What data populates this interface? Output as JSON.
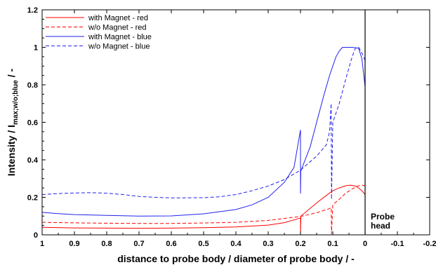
{
  "chart_data": {
    "type": "line",
    "xlabel": "distance to probe body / diameter of probe body / -",
    "ylabel": {
      "prefix": "Intensity / I",
      "subscript": "max;w/o;blue",
      "suffix": " / -"
    },
    "xlim": [
      1,
      -0.2
    ],
    "ylim": [
      0,
      1.2
    ],
    "x_ticks": [
      1,
      0.9,
      0.8,
      0.7,
      0.6,
      0.5,
      0.4,
      0.3,
      0.2,
      0.1,
      0,
      -0.1,
      -0.2
    ],
    "x_tick_labels": [
      "1",
      "0.9",
      "0.8",
      "0.7",
      "0.6",
      "0.5",
      "0.4",
      "0.3",
      "0.2",
      "0.1",
      "0",
      "-0.1",
      "-0.2"
    ],
    "y_ticks": [
      0,
      0.2,
      0.4,
      0.6,
      0.8,
      1,
      1.2
    ],
    "y_tick_labels": [
      "0",
      "0.2",
      "0.4",
      "0.6",
      "0.8",
      "1",
      "1.2"
    ],
    "grid": false,
    "legend_position": "top-left",
    "annotation": {
      "text_lines": [
        "Probe",
        "head"
      ],
      "x": 0,
      "vertical_line_at_x": 0
    },
    "series": [
      {
        "name": "with Magnet - red",
        "color": "#ff0000",
        "dash": "solid",
        "points": [
          [
            1.0,
            0.04
          ],
          [
            0.9,
            0.037
          ],
          [
            0.8,
            0.036
          ],
          [
            0.7,
            0.035
          ],
          [
            0.6,
            0.036
          ],
          [
            0.5,
            0.038
          ],
          [
            0.4,
            0.042
          ],
          [
            0.3,
            0.052
          ],
          [
            0.25,
            0.065
          ],
          [
            0.21,
            0.085
          ],
          [
            0.2,
            0.09
          ],
          [
            0.2,
            0.0
          ],
          [
            0.199,
            0.1
          ],
          [
            0.15,
            0.17
          ],
          [
            0.12,
            0.21
          ],
          [
            0.1,
            0.235
          ],
          [
            0.08,
            0.25
          ],
          [
            0.06,
            0.262
          ],
          [
            0.045,
            0.265
          ],
          [
            0.03,
            0.26
          ],
          [
            0.02,
            0.25
          ],
          [
            0.01,
            0.235
          ],
          [
            0.0,
            0.215
          ]
        ]
      },
      {
        "name": "w/o Magnet - red",
        "color": "#ff0000",
        "dash": "dashed",
        "points": [
          [
            1.0,
            0.067
          ],
          [
            0.9,
            0.064
          ],
          [
            0.8,
            0.062
          ],
          [
            0.7,
            0.061
          ],
          [
            0.6,
            0.061
          ],
          [
            0.5,
            0.063
          ],
          [
            0.4,
            0.067
          ],
          [
            0.3,
            0.077
          ],
          [
            0.2,
            0.098
          ],
          [
            0.15,
            0.118
          ],
          [
            0.11,
            0.14
          ],
          [
            0.105,
            0.145
          ],
          [
            0.104,
            0.005
          ],
          [
            0.1,
            0.16
          ],
          [
            0.08,
            0.19
          ],
          [
            0.06,
            0.222
          ],
          [
            0.04,
            0.245
          ],
          [
            0.02,
            0.262
          ],
          [
            0.01,
            0.265
          ],
          [
            0.0,
            0.262
          ]
        ]
      },
      {
        "name": "with Magnet - blue",
        "color": "#2222ee",
        "dash": "solid",
        "points": [
          [
            1.0,
            0.12
          ],
          [
            0.95,
            0.113
          ],
          [
            0.9,
            0.108
          ],
          [
            0.8,
            0.104
          ],
          [
            0.7,
            0.1
          ],
          [
            0.6,
            0.101
          ],
          [
            0.5,
            0.112
          ],
          [
            0.4,
            0.135
          ],
          [
            0.35,
            0.16
          ],
          [
            0.3,
            0.2
          ],
          [
            0.25,
            0.28
          ],
          [
            0.22,
            0.36
          ],
          [
            0.2,
            0.56
          ],
          [
            0.2,
            0.22
          ],
          [
            0.199,
            0.34
          ],
          [
            0.17,
            0.47
          ],
          [
            0.15,
            0.6
          ],
          [
            0.13,
            0.73
          ],
          [
            0.11,
            0.85
          ],
          [
            0.09,
            0.95
          ],
          [
            0.08,
            0.98
          ],
          [
            0.07,
            1.0
          ],
          [
            0.04,
            1.0
          ],
          [
            0.02,
            0.995
          ],
          [
            0.01,
            0.94
          ],
          [
            0.0,
            0.79
          ]
        ]
      },
      {
        "name": "w/o Magnet - blue",
        "color": "#2222ee",
        "dash": "dashed",
        "points": [
          [
            1.0,
            0.215
          ],
          [
            0.95,
            0.22
          ],
          [
            0.9,
            0.223
          ],
          [
            0.85,
            0.225
          ],
          [
            0.8,
            0.222
          ],
          [
            0.75,
            0.215
          ],
          [
            0.7,
            0.205
          ],
          [
            0.65,
            0.2
          ],
          [
            0.6,
            0.197
          ],
          [
            0.5,
            0.198
          ],
          [
            0.45,
            0.203
          ],
          [
            0.4,
            0.215
          ],
          [
            0.35,
            0.235
          ],
          [
            0.3,
            0.26
          ],
          [
            0.25,
            0.295
          ],
          [
            0.2,
            0.345
          ],
          [
            0.15,
            0.42
          ],
          [
            0.12,
            0.48
          ],
          [
            0.11,
            0.55
          ],
          [
            0.105,
            0.7
          ],
          [
            0.104,
            0.19
          ],
          [
            0.1,
            0.6
          ],
          [
            0.08,
            0.7
          ],
          [
            0.06,
            0.83
          ],
          [
            0.04,
            0.95
          ],
          [
            0.03,
            0.995
          ],
          [
            0.02,
            1.0
          ],
          [
            0.01,
            0.97
          ],
          [
            0.0,
            0.93
          ]
        ]
      }
    ]
  }
}
